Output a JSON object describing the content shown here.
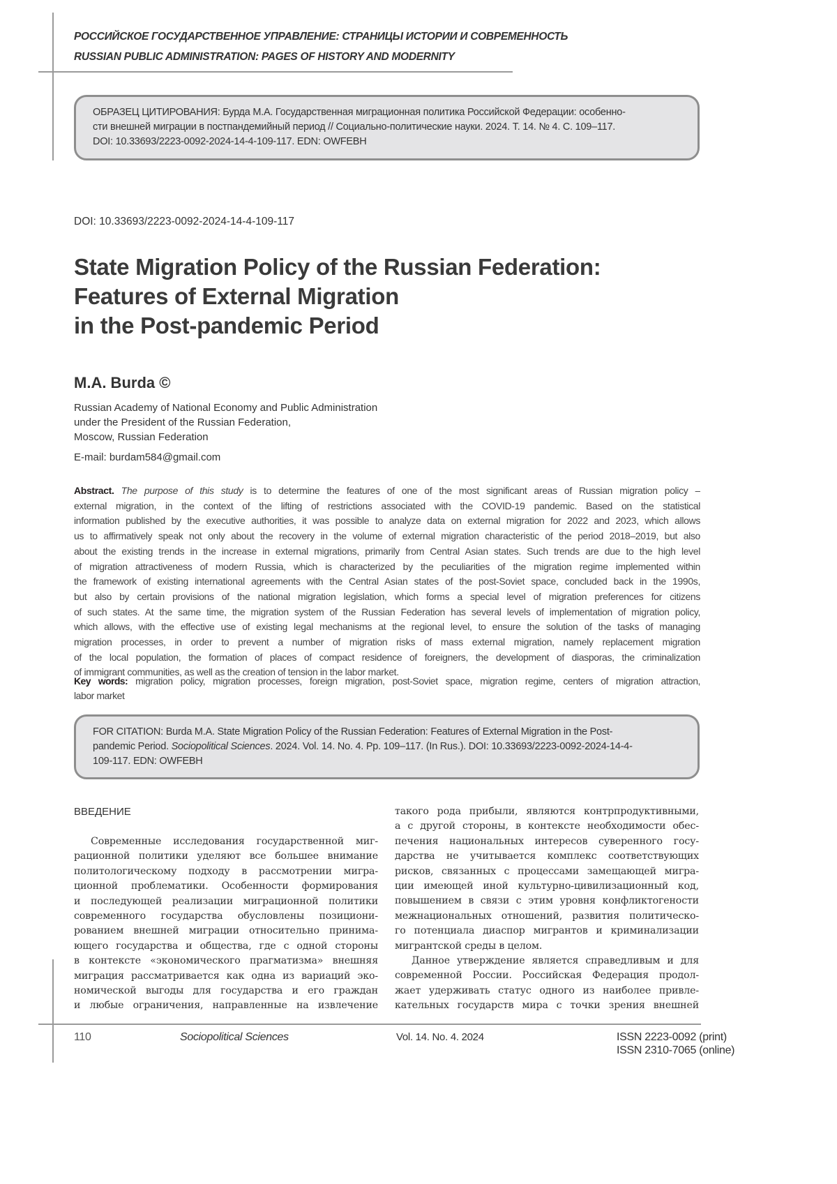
{
  "running_head": {
    "ru": "РОССИЙСКОЕ ГОСУДАРСТВЕННОЕ УПРАВЛЕНИЕ: СТРАНИЦЫ ИСТОРИИ И СОВРЕМЕННОСТЬ",
    "en": "RUSSIAN PUBLIC ADMINISTRATION: PAGES OF HISTORY AND MODERNITY"
  },
  "citation_ru": [
    "ОБРАЗЕЦ ЦИТИРОВАНИЯ: Бурда М.А. Государственная миграционная политика Российской Федерации: особенно-",
    "сти внешней миграции в постпандемийный период // Социально-политические науки. 2024. Т. 14. № 4. С. 109–117.",
    "DOI: 10.33693/2223-0092-2024-14-4-109-117. EDN: OWFEBH"
  ],
  "doi": "DOI: 10.33693/2223-0092-2024-14-4-109-117",
  "title": [
    "State Migration Policy of the Russian Federation:",
    "Features of External Migration",
    "in the Post-pandemic Period"
  ],
  "author": "M.A. Burda ©",
  "affiliation": [
    "Russian Academy of National Economy and Public Administration",
    "under the President of the Russian Federation,",
    "Moscow, Russian Federation"
  ],
  "email": "E-mail: burdam584@gmail.com",
  "abstract": {
    "label": "Abstract.",
    "purpose": "The purpose of this study",
    "first_line_rest": " is to determine the features of one of the most significant areas of Russian migration policy –",
    "lines": [
      "external migration, in the context of the lifting of restrictions associated with the COVID-19 pandemic. Based on the statistical",
      "information published by the executive authorities, it was possible to analyze data on external migration for 2022 and 2023, which allows",
      "us to affirmatively speak not only about the recovery in the volume of external migration characteristic of the period 2018–2019, but also",
      "about the existing trends in the increase in external migrations, primarily from Central Asian states. Such trends are due to the high level",
      "of migration attractiveness of modern Russia, which is characterized by the peculiarities of the migration regime implemented within",
      "the framework of existing international agreements with the Central Asian states of the post-Soviet space, concluded back in the 1990s,",
      "but also by certain provisions of the national migration legislation, which forms a special level of migration preferences for citizens",
      "of such states. At the same time, the migration system of the Russian Federation has several levels of implementation of migration policy,",
      "which allows, with the effective use of existing legal mechanisms at the regional level, to ensure the solution of the tasks of managing",
      "migration processes, in order to prevent a number of migration risks of mass external migration, namely replacement migration",
      "of the local population, the formation of places of compact residence of foreigners, the development of diasporas, the criminalization",
      "of immigrant communities, as well as the creation of tension in the labor market."
    ]
  },
  "keywords": {
    "label": "Key words:",
    "line1": " migration policy, migration processes, foreign migration, post-Soviet space, migration regime, centers of migration attraction,",
    "line2": "labor market"
  },
  "citation_en": {
    "line1": "FOR CITATION: Burda M.A. State Migration Policy of the Russian Federation: Features of External Migration in the Post-",
    "line2_a": "pandemic Period. ",
    "journal": "Sociopolitical Sciences",
    "line2_b": ". 2024. Vol. 14. No. 4. Pp. 109–117. (In Rus.). DOI: 10.33693/2223-0092-2024-14-4-",
    "line3": "109-117. EDN: OWFEBH"
  },
  "section_heading": "ВВЕДЕНИЕ",
  "left_column": [
    {
      "indent": true,
      "last": false,
      "text": "Современные исследования государственной миг-"
    },
    {
      "indent": false,
      "last": false,
      "text": "рационной политики уделяют все большее внимание"
    },
    {
      "indent": false,
      "last": false,
      "text": "политологическому подходу в рассмотрении мигра-"
    },
    {
      "indent": false,
      "last": false,
      "text": "ционной проблематики. Особенности формирования"
    },
    {
      "indent": false,
      "last": false,
      "text": "и последующей реализации миграционной политики"
    },
    {
      "indent": false,
      "last": false,
      "text": "современного государства обусловлены позициони-"
    },
    {
      "indent": false,
      "last": false,
      "text": "рованием внешней миграции относительно принима-"
    },
    {
      "indent": false,
      "last": false,
      "text": "ющего государства и общества, где с одной стороны"
    },
    {
      "indent": false,
      "last": false,
      "text": "в контексте «экономического прагматизма» внешняя"
    },
    {
      "indent": false,
      "last": false,
      "text": "миграция рассматривается как одна из вариаций эко-"
    },
    {
      "indent": false,
      "last": false,
      "text": "номической выгоды для государства и его граждан"
    },
    {
      "indent": false,
      "last": false,
      "text": "и любые ограничения, направленные на извлечение"
    }
  ],
  "right_column": [
    {
      "indent": false,
      "last": false,
      "text": "такого рода прибыли, являются контрпродуктивными,"
    },
    {
      "indent": false,
      "last": false,
      "text": "а с другой стороны, в контексте необходимости обес-"
    },
    {
      "indent": false,
      "last": false,
      "text": "печения национальных интересов суверенного госу-"
    },
    {
      "indent": false,
      "last": false,
      "text": "дарства не учитывается комплекс соответствующих"
    },
    {
      "indent": false,
      "last": false,
      "text": "рисков, связанных с процессами замещающей мигра-"
    },
    {
      "indent": false,
      "last": false,
      "text": "ции имеющей иной культурно-цивилизационный код,"
    },
    {
      "indent": false,
      "last": false,
      "text": "повышением в связи с этим уровня конфликтогености"
    },
    {
      "indent": false,
      "last": false,
      "text": "межнациональных отношений, развития политическо-"
    },
    {
      "indent": false,
      "last": false,
      "text": "го потенциала диаспор мигрантов и криминализации"
    },
    {
      "indent": false,
      "last": true,
      "text": "мигрантской среды в целом."
    },
    {
      "indent": true,
      "last": false,
      "text": "Данное утверждение является справедливым и для"
    },
    {
      "indent": false,
      "last": false,
      "text": "современной России. Российская Федерация продол-"
    },
    {
      "indent": false,
      "last": false,
      "text": "жает удерживать статус одного из наиболее привле-"
    },
    {
      "indent": false,
      "last": false,
      "text": "кательных государств мира с точки зрения внешней"
    }
  ],
  "footer": {
    "page_number": "110",
    "journal": "Sociopolitical Sciences",
    "issue": "Vol. 14. No. 4. 2024",
    "issn_print": "ISSN 2223-0092 (print)",
    "issn_online": "ISSN 2310-7065 (online)"
  }
}
